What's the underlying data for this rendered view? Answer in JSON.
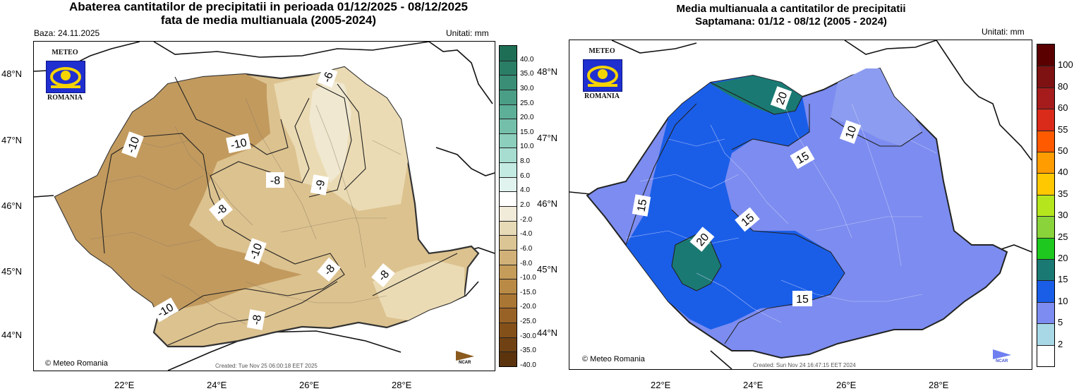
{
  "left": {
    "title_line1": "Abaterea cantitatilor de precipitatii in perioada 01/12/2025 - 08/12/2025",
    "title_line2": "fata de media multianuala (2005-2024)",
    "base": "Baza: 24.11.2025",
    "units": "Unitati: mm",
    "lat_labels": [
      "48°N",
      "47°N",
      "46°N",
      "45°N",
      "44°N"
    ],
    "lon_labels": [
      "22°E",
      "24°E",
      "26°E",
      "28°E"
    ],
    "colorbar_labels": [
      "40.0",
      "35.0",
      "30.0",
      "25.0",
      "20.0",
      "15.0",
      "10.0",
      "8.0",
      "6.0",
      "4.0",
      "2.0",
      "-2.0",
      "-4.0",
      "-6.0",
      "-8.0",
      "-10.0",
      "-15.0",
      "-20.0",
      "-25.0",
      "-30.0",
      "-35.0",
      "-40.0"
    ],
    "colorbar_colors": [
      "#1e6e56",
      "#2b7e66",
      "#3a8e76",
      "#4b9e86",
      "#5daf98",
      "#74bfaa",
      "#8ccfbc",
      "#a6ddd0",
      "#c3ebe2",
      "#e0f3ef",
      "#ffffff",
      "#f1ebd9",
      "#e7dab7",
      "#dcc594",
      "#d1b178",
      "#c59c5a",
      "#b98a45",
      "#a97634",
      "#986226",
      "#84501a",
      "#6f4113",
      "#5b340e"
    ],
    "contour_labels": [
      "-10",
      "-10",
      "-8",
      "-8",
      "-9",
      "-6",
      "-10",
      "-8",
      "-8",
      "-10",
      "-8"
    ],
    "logo_top": "METEO",
    "logo_bottom": "ROMANIA",
    "copyright": "© Meteo Romania",
    "created": "Created: Tue Nov 25 06:00:18 EET 2025",
    "ncar": "NCAR",
    "colors": {
      "dark": "#c29a5e",
      "mid": "#dcc28f",
      "light": "#ebdbb4",
      "lightest": "#f0e8d0"
    }
  },
  "right": {
    "title_line1": "Media multianuala a cantitatilor de precipitatii",
    "title_line2": "Saptamana: 01/12 - 08/12 (2005 - 2024)",
    "units": "Unitati: mm",
    "lat_labels": [
      "48°N",
      "47°N",
      "46°N",
      "45°N",
      "44°N"
    ],
    "lon_labels": [
      "22°E",
      "24°E",
      "26°E",
      "28°E"
    ],
    "colorbar_labels": [
      "100",
      "80",
      "60",
      "55",
      "50",
      "40",
      "35",
      "30",
      "25",
      "20",
      "15",
      "10",
      "5",
      "2"
    ],
    "colorbar_colors": [
      "#5a0000",
      "#7e1212",
      "#a61c1c",
      "#d92a1a",
      "#ff5a00",
      "#ff9c00",
      "#ffc800",
      "#b5e61d",
      "#8ad33b",
      "#1ec81e",
      "#1a7a73",
      "#1a5ee8",
      "#7c8cf0",
      "#a8d8e6",
      "#ffffff"
    ],
    "contour_labels": [
      "20",
      "10",
      "15",
      "15",
      "15",
      "20",
      "15"
    ],
    "logo_top": "METEO",
    "logo_bottom": "ROMANIA",
    "copyright": "© Meteo Romania",
    "created": "Created: Sun Nov 24 16:47:15 EET 2024",
    "ncar": "NCAR",
    "colors": {
      "blue15": "#1a5ee8",
      "purple10": "#7888ec",
      "lightpurple": "#8c9cf0",
      "teal20": "#1a7a73"
    }
  }
}
